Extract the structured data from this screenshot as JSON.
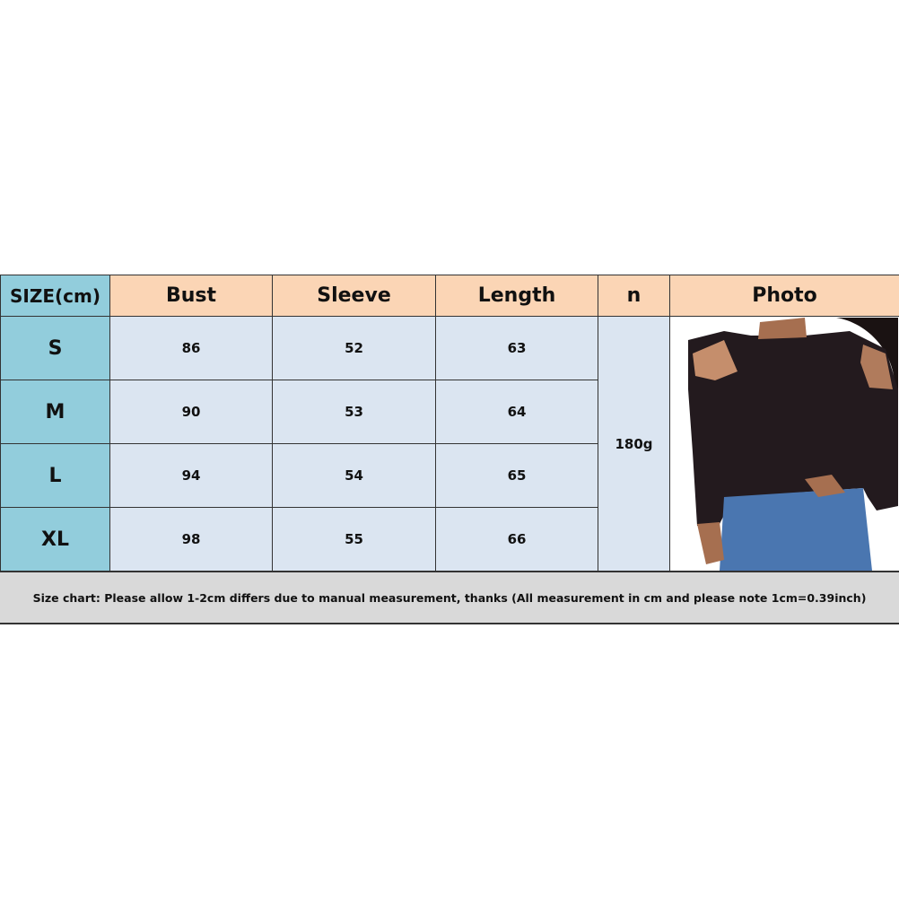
{
  "table": {
    "headers": [
      "SIZE(cm)",
      "Bust",
      "Sleeve",
      "Length",
      "n",
      "Photo"
    ],
    "rows": [
      {
        "size": "S",
        "bust": "86",
        "sleeve": "52",
        "length": "63"
      },
      {
        "size": "M",
        "bust": "90",
        "sleeve": "53",
        "length": "64"
      },
      {
        "size": "L",
        "bust": "94",
        "sleeve": "54",
        "length": "65"
      },
      {
        "size": "XL",
        "bust": "98",
        "sleeve": "55",
        "length": "66"
      }
    ],
    "weight": "180g"
  },
  "footer": "Size chart: Please allow 1-2cm differs due to manual measurement, thanks (All measurement in cm and please note 1cm=0.39inch)",
  "colors": {
    "header": "#fbd5b5",
    "size_column": "#92cddc",
    "cells": "#dbe5f1",
    "footer": "#d9d9d9"
  }
}
